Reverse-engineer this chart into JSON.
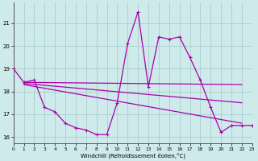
{
  "xlabel": "Windchill (Refroidissement éolien,°C)",
  "background_color": "#ceeaea",
  "grid_color": "#aacece",
  "line_color": "#aa00aa",
  "hours": [
    0,
    1,
    2,
    3,
    4,
    5,
    6,
    7,
    8,
    9,
    10,
    11,
    12,
    13,
    14,
    15,
    16,
    17,
    18,
    19,
    20,
    21,
    22,
    23
  ],
  "main_data": [
    19.0,
    18.4,
    18.5,
    17.3,
    17.1,
    16.6,
    16.4,
    16.3,
    16.1,
    16.1,
    17.5,
    20.1,
    21.5,
    18.2,
    20.4,
    20.3,
    20.4,
    19.5,
    18.5,
    17.3,
    16.2,
    16.5,
    16.5,
    16.5
  ],
  "trend1_x": [
    1,
    22
  ],
  "trend1_y": [
    18.4,
    18.3
  ],
  "trend2_x": [
    1,
    22
  ],
  "trend2_y": [
    18.35,
    17.5
  ],
  "trend3_x": [
    1,
    22
  ],
  "trend3_y": [
    18.3,
    16.6
  ],
  "ylim": [
    15.7,
    21.9
  ],
  "xlim": [
    0,
    23
  ],
  "yticks": [
    16,
    17,
    18,
    19,
    20,
    21
  ],
  "xticks": [
    0,
    1,
    2,
    3,
    4,
    5,
    6,
    7,
    8,
    9,
    10,
    11,
    12,
    13,
    14,
    15,
    16,
    17,
    18,
    19,
    20,
    21,
    22,
    23
  ]
}
